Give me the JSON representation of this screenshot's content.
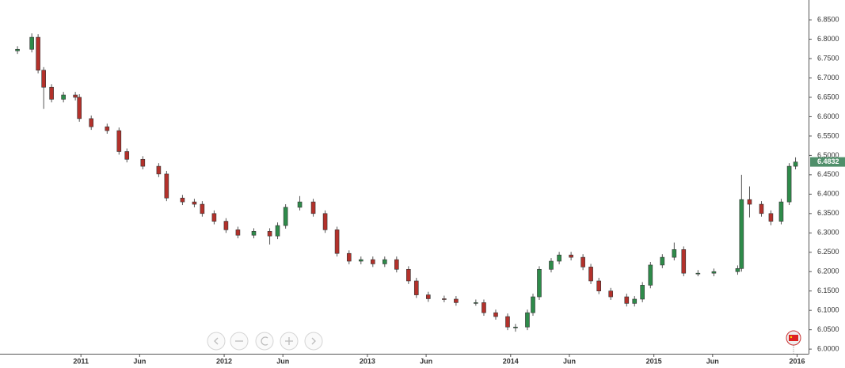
{
  "chart_data": {
    "type": "candlestick",
    "up_color": "#2e8b4a",
    "down_color": "#b3312b",
    "x": [
      2010.557,
      2010.657,
      2010.701,
      2010.74,
      2010.795,
      2010.878,
      2010.961,
      2010.989,
      2011.072,
      2011.183,
      2011.266,
      2011.321,
      2011.432,
      2011.543,
      2011.598,
      2011.709,
      2011.792,
      2011.847,
      2011.93,
      2012.013,
      2012.096,
      2012.207,
      2012.318,
      2012.373,
      2012.429,
      2012.528,
      2012.622,
      2012.705,
      2012.788,
      2012.872,
      2012.955,
      2013.038,
      2013.121,
      2013.204,
      2013.287,
      2013.342,
      2013.425,
      2013.536,
      2013.619,
      2013.757,
      2013.813,
      2013.896,
      2013.979,
      2014.034,
      2014.117,
      2014.156,
      2014.2,
      2014.283,
      2014.339,
      2014.422,
      2014.505,
      2014.56,
      2014.616,
      2014.699,
      2014.81,
      2014.865,
      2014.92,
      2014.976,
      2015.059,
      2015.142,
      2015.208,
      2015.308,
      2015.419,
      2015.585,
      2015.612,
      2015.668,
      2015.751,
      2015.817,
      2015.889,
      2015.945,
      2015.989
    ],
    "open": [
      6.77,
      6.774,
      6.805,
      6.72,
      6.676,
      6.645,
      6.656,
      6.65,
      6.595,
      6.574,
      6.564,
      6.51,
      6.49,
      6.472,
      6.452,
      6.39,
      6.38,
      6.374,
      6.35,
      6.33,
      6.308,
      6.294,
      6.304,
      6.292,
      6.319,
      6.366,
      6.38,
      6.35,
      6.308,
      6.247,
      6.227,
      6.231,
      6.22,
      6.231,
      6.206,
      6.176,
      6.14,
      6.13,
      6.129,
      6.12,
      6.12,
      6.094,
      6.084,
      6.057,
      6.057,
      6.094,
      6.135,
      6.206,
      6.227,
      6.243,
      6.237,
      6.212,
      6.176,
      6.15,
      6.135,
      6.118,
      6.129,
      6.165,
      6.217,
      6.237,
      6.257,
      6.196,
      6.196,
      6.2,
      6.208,
      6.386,
      6.374,
      6.35,
      6.33,
      6.38,
      6.472
    ],
    "high": [
      6.782,
      6.815,
      6.813,
      6.728,
      6.684,
      6.664,
      6.664,
      6.658,
      6.603,
      6.582,
      6.572,
      6.518,
      6.498,
      6.48,
      6.46,
      6.398,
      6.388,
      6.382,
      6.358,
      6.338,
      6.316,
      6.312,
      6.312,
      6.327,
      6.374,
      6.395,
      6.388,
      6.358,
      6.316,
      6.255,
      6.239,
      6.239,
      6.239,
      6.239,
      6.214,
      6.184,
      6.148,
      6.138,
      6.137,
      6.128,
      6.128,
      6.102,
      6.092,
      6.065,
      6.102,
      6.143,
      6.214,
      6.235,
      6.251,
      6.251,
      6.245,
      6.22,
      6.184,
      6.158,
      6.143,
      6.137,
      6.173,
      6.225,
      6.245,
      6.275,
      6.265,
      6.204,
      6.208,
      6.216,
      6.45,
      6.42,
      6.382,
      6.358,
      6.388,
      6.48,
      6.495
    ],
    "low": [
      6.762,
      6.766,
      6.712,
      6.62,
      6.637,
      6.637,
      6.642,
      6.587,
      6.566,
      6.556,
      6.502,
      6.482,
      6.464,
      6.444,
      6.382,
      6.372,
      6.366,
      6.342,
      6.322,
      6.3,
      6.286,
      6.286,
      6.27,
      6.284,
      6.311,
      6.358,
      6.342,
      6.3,
      6.239,
      6.219,
      6.219,
      6.212,
      6.212,
      6.198,
      6.168,
      6.132,
      6.122,
      6.121,
      6.112,
      6.112,
      6.086,
      6.076,
      6.049,
      6.045,
      6.049,
      6.086,
      6.127,
      6.198,
      6.219,
      6.229,
      6.204,
      6.168,
      6.142,
      6.127,
      6.11,
      6.11,
      6.121,
      6.157,
      6.209,
      6.229,
      6.188,
      6.188,
      6.188,
      6.192,
      6.2,
      6.34,
      6.342,
      6.32,
      6.322,
      6.372,
      6.464
    ],
    "close": [
      6.774,
      6.805,
      6.72,
      6.676,
      6.645,
      6.656,
      6.65,
      6.595,
      6.574,
      6.564,
      6.51,
      6.49,
      6.472,
      6.452,
      6.39,
      6.38,
      6.374,
      6.35,
      6.33,
      6.308,
      6.294,
      6.304,
      6.292,
      6.319,
      6.366,
      6.38,
      6.35,
      6.308,
      6.247,
      6.227,
      6.231,
      6.22,
      6.231,
      6.206,
      6.176,
      6.14,
      6.13,
      6.129,
      6.12,
      6.12,
      6.094,
      6.084,
      6.057,
      6.057,
      6.094,
      6.135,
      6.206,
      6.227,
      6.243,
      6.237,
      6.212,
      6.176,
      6.15,
      6.135,
      6.118,
      6.129,
      6.165,
      6.217,
      6.237,
      6.257,
      6.196,
      6.196,
      6.2,
      6.208,
      6.386,
      6.374,
      6.35,
      6.33,
      6.38,
      6.472,
      6.483
    ],
    "last_price": 6.4832,
    "last_price_color": "#4f8f6a",
    "xlim": [
      2010.435,
      2016.08
    ],
    "xticks": [
      2011,
      {
        "value": 2011.41,
        "label": "Jun"
      },
      2012,
      {
        "value": 2012.41,
        "label": "Jun"
      },
      2013,
      {
        "value": 2013.41,
        "label": "Jun"
      },
      2014,
      {
        "value": 2014.41,
        "label": "Jun"
      },
      2015,
      {
        "value": 2015.41,
        "label": "Jun"
      },
      2016
    ],
    "ylim": [
      5.988,
      6.891
    ],
    "yticks": [
      {
        "value": 6.0,
        "label": "6.0000"
      },
      {
        "value": 6.05,
        "label": "6.0500"
      },
      {
        "value": 6.1,
        "label": "6.1000"
      },
      {
        "value": 6.15,
        "label": "6.1500"
      },
      {
        "value": 6.2,
        "label": "6.2000"
      },
      {
        "value": 6.25,
        "label": "6.2500"
      },
      {
        "value": 6.3,
        "label": "6.3000"
      },
      {
        "value": 6.35,
        "label": "6.3500"
      },
      {
        "value": 6.4,
        "label": "6.4000"
      },
      {
        "value": 6.45,
        "label": "6.4500"
      },
      {
        "value": 6.5,
        "label": "6.5000"
      },
      {
        "value": 6.55,
        "label": "6.5500"
      },
      {
        "value": 6.6,
        "label": "6.6000"
      },
      {
        "value": 6.65,
        "label": "6.6500"
      },
      {
        "value": 6.7,
        "label": "6.7000"
      },
      {
        "value": 6.75,
        "label": "6.7500"
      },
      {
        "value": 6.8,
        "label": "6.8000"
      },
      {
        "value": 6.85,
        "label": "6.8500"
      }
    ]
  }
}
